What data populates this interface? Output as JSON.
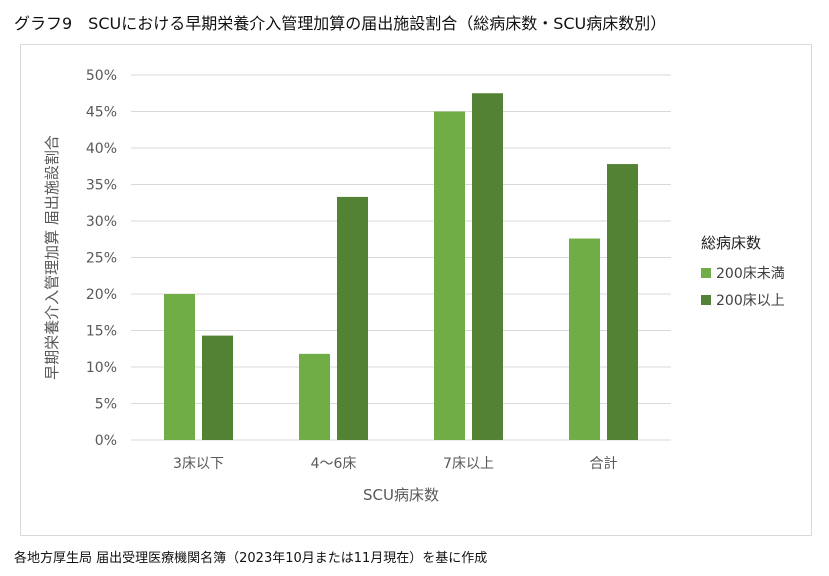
{
  "title": "グラフ9　SCUにおける早期栄養介入管理加算の届出施設割合（総病床数・SCU病床数別）",
  "source": "各地方厚生局 届出受理医療機関名簿（2023年10月または11月現在）を基に作成",
  "colors": {
    "series1": "#70ad47",
    "series2": "#548235",
    "grid": "#d9d9d9"
  },
  "chart_data": {
    "type": "bar",
    "xlabel": "SCU病床数",
    "ylabel": "早期栄養介入管理加算 届出施設割合",
    "ylim": [
      0,
      50
    ],
    "yticks": [
      "0%",
      "5%",
      "10%",
      "15%",
      "20%",
      "25%",
      "30%",
      "35%",
      "40%",
      "45%",
      "50%"
    ],
    "categories": [
      "3床以下",
      "4～6床",
      "7床以上",
      "合計"
    ],
    "legend_title": "総病床数",
    "legend_position": "right",
    "grid": true,
    "series": [
      {
        "name": "200床未満",
        "values": [
          20.0,
          11.8,
          45.0,
          27.6
        ]
      },
      {
        "name": "200床以上",
        "values": [
          14.3,
          33.3,
          47.5,
          37.8
        ]
      }
    ]
  }
}
